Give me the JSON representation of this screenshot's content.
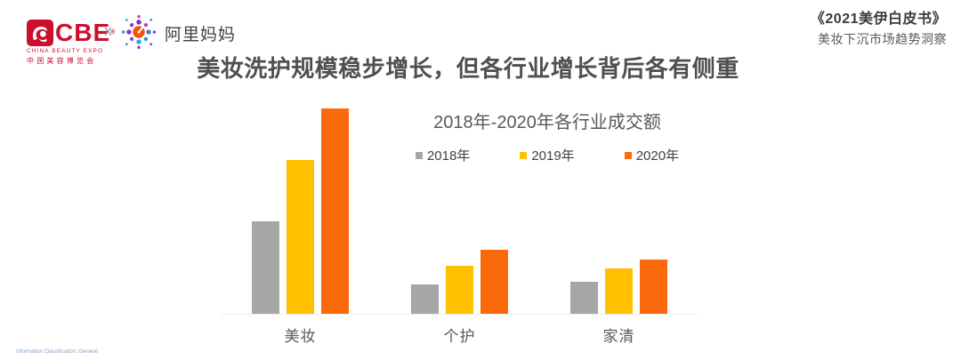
{
  "header": {
    "cbe_logo": {
      "name": "CBE",
      "registered_mark": "®",
      "subtitle_en": "CHINA BEAUTY EXPO",
      "subtitle_cn": "中国美容博览会",
      "brand_color": "#CE0E2D",
      "icon": "cbe-face-mark-icon"
    },
    "separator": "X",
    "alimama_logo": {
      "label": "阿里妈妈",
      "icon": "alimama-starburst-dots-icon"
    }
  },
  "header_right": {
    "line1": "《2021美伊白皮书》",
    "line2": "美妆下沉市场趋势洞察"
  },
  "main_title": "美妆洗护规模稳步增长，但各行业增长背后各有侧重",
  "chart_data": {
    "type": "bar",
    "title": "2018年-2020年各行业成交额",
    "categories": [
      "美妆",
      "个护",
      "家清"
    ],
    "series": [
      {
        "name": "2018年",
        "color": "#A6A6A6",
        "values": [
          45,
          14.5,
          15.5
        ]
      },
      {
        "name": "2019年",
        "color": "#FFC000",
        "values": [
          75,
          23.5,
          22
        ]
      },
      {
        "name": "2020年",
        "color": "#FA6A0D",
        "values": [
          100,
          31,
          26.5
        ]
      }
    ],
    "xlabel": "",
    "ylabel": "",
    "ylim": [
      0,
      100
    ],
    "value_axis_labels_visible": false,
    "gridlines": false,
    "legend_position": "top",
    "values_are_relative_estimates": true
  },
  "footer": {
    "classification": "Information Classification: General"
  }
}
